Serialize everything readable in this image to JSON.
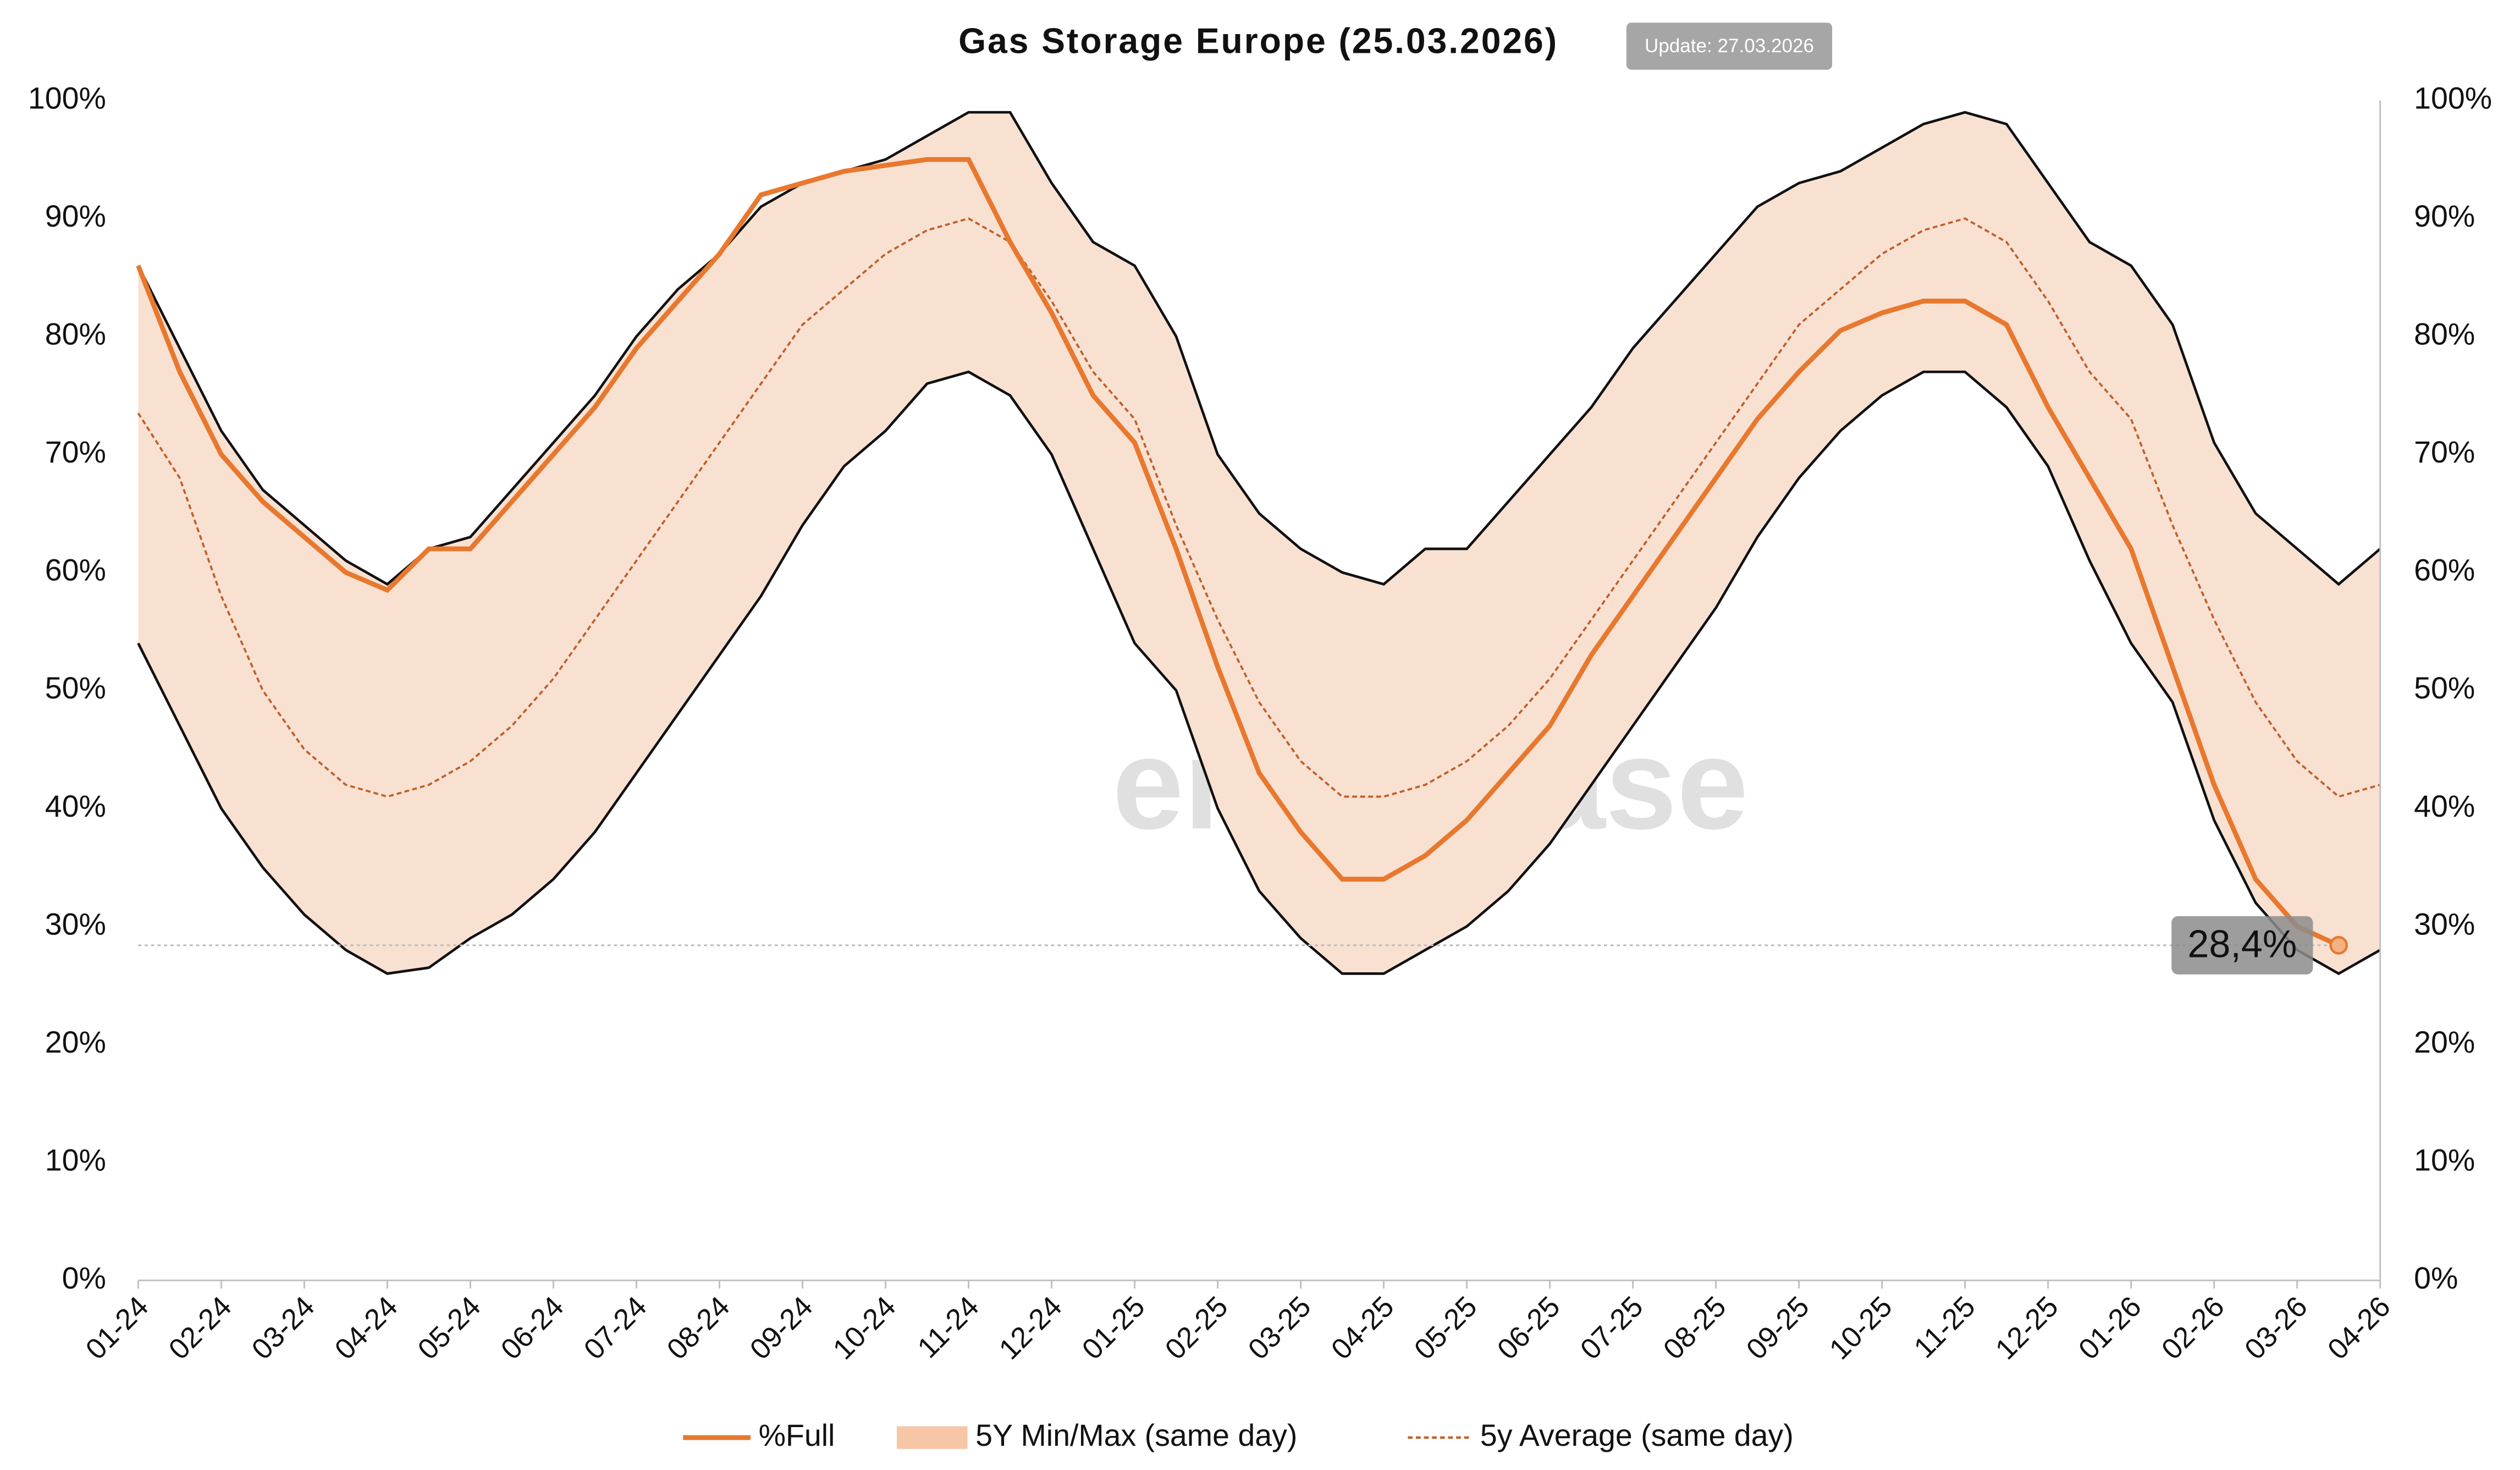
{
  "chart_data": {
    "type": "line",
    "title": "Gas Storage Europe (25.03.2026)",
    "update": "Update: 27.03.2026",
    "watermark": "enerchase",
    "categories": [
      "01-24",
      null,
      "02-24",
      null,
      "03-24",
      null,
      "04-24",
      null,
      "05-24",
      null,
      "06-24",
      null,
      "07-24",
      null,
      "08-24",
      null,
      "09-24",
      null,
      "10-24",
      null,
      "11-24",
      null,
      "12-24",
      null,
      "01-25",
      null,
      "02-25",
      null,
      "03-25",
      null,
      "04-25",
      null,
      "05-25",
      null,
      "06-25",
      null,
      "07-25",
      null,
      "08-25",
      null,
      "09-25",
      null,
      "10-25",
      null,
      "11-25",
      null,
      "12-25",
      null,
      "01-26",
      null,
      "02-26",
      null,
      "03-26",
      null,
      "04-26"
    ],
    "series": [
      {
        "name": "%Full",
        "color": "#e8782e",
        "values": [
          86,
          77,
          70,
          66,
          63,
          60,
          58.5,
          62,
          62,
          66,
          70,
          74,
          79,
          83,
          87,
          92,
          93,
          94,
          94.5,
          95,
          95,
          88,
          82,
          75,
          71,
          62,
          52,
          43,
          38,
          34,
          34,
          36,
          39,
          43,
          47,
          53,
          58,
          63,
          68,
          73,
          77,
          80.5,
          82,
          83,
          83,
          81,
          74,
          68,
          62,
          52,
          42,
          34,
          30,
          28.4,
          null
        ],
        "value_labels": [
          null,
          null,
          null,
          null,
          null,
          null,
          null,
          null,
          null,
          null,
          null,
          null,
          null,
          null,
          null,
          null,
          null,
          null,
          null,
          null,
          null,
          null,
          null,
          null,
          null,
          null,
          null,
          null,
          null,
          null,
          null,
          null,
          null,
          null,
          null,
          null,
          null,
          null,
          null,
          null,
          null,
          null,
          null,
          null,
          null,
          null,
          null,
          null,
          null,
          null,
          null,
          null,
          null,
          "28,4%",
          null
        ]
      },
      {
        "name": "5Y Min/Max (same day)",
        "color": "#f9e1d2",
        "line_color": "#111111",
        "min": [
          54,
          47,
          40,
          35,
          31,
          28,
          26,
          26.5,
          29,
          31,
          34,
          38,
          43,
          48,
          53,
          58,
          64,
          69,
          72,
          76,
          77,
          75,
          70,
          62,
          54,
          50,
          40,
          33,
          29,
          26,
          26,
          28,
          30,
          33,
          37,
          42,
          47,
          52,
          57,
          63,
          68,
          72,
          75,
          77,
          77,
          74,
          69,
          61,
          54,
          49,
          39,
          32,
          28,
          26,
          28
        ],
        "max": [
          86,
          79,
          72,
          67,
          64,
          61,
          59,
          62,
          63,
          67,
          71,
          75,
          80,
          84,
          87,
          91,
          93,
          94,
          95,
          97,
          99,
          99,
          93,
          88,
          86,
          80,
          70,
          65,
          62,
          60,
          59,
          62,
          62,
          66,
          70,
          74,
          79,
          83,
          87,
          91,
          93,
          94,
          96,
          98,
          99,
          98,
          93,
          88,
          86,
          81,
          71,
          65,
          62,
          59,
          62
        ]
      },
      {
        "name": "5y Average (same day)",
        "color": "#c0602a",
        "dashed": true,
        "values": [
          73.5,
          68,
          58,
          50,
          45,
          42,
          41,
          42,
          44,
          47,
          51,
          56,
          61,
          66,
          71,
          76,
          81,
          84,
          87,
          89,
          90,
          88,
          83,
          77,
          73,
          64,
          56,
          49,
          44,
          41,
          41,
          42,
          44,
          47,
          51,
          56,
          61,
          66,
          71,
          76,
          81,
          84,
          87,
          89,
          90,
          88,
          83,
          77,
          73,
          64,
          56,
          49,
          44,
          41,
          42
        ]
      }
    ],
    "ylim": [
      0,
      100
    ],
    "yticks": [
      {
        "value": 0,
        "label": "0%"
      },
      {
        "value": 10,
        "label": "10%"
      },
      {
        "value": 20,
        "label": "20%"
      },
      {
        "value": 30,
        "label": "30%"
      },
      {
        "value": 40,
        "label": "40%"
      },
      {
        "value": 50,
        "label": "50%"
      },
      {
        "value": 60,
        "label": "60%"
      },
      {
        "value": 70,
        "label": "70%"
      },
      {
        "value": 80,
        "label": "80%"
      },
      {
        "value": 90,
        "label": "90%"
      },
      {
        "value": 100,
        "label": "100%"
      }
    ],
    "y2lim": [
      0,
      100
    ],
    "y2ticks": [
      {
        "value": 0,
        "label": "0%"
      },
      {
        "value": 10,
        "label": "10%"
      },
      {
        "value": 20,
        "label": "20%"
      },
      {
        "value": 30,
        "label": "30%"
      },
      {
        "value": 40,
        "label": "40%"
      },
      {
        "value": 50,
        "label": "50%"
      },
      {
        "value": 60,
        "label": "60%"
      },
      {
        "value": 70,
        "label": "70%"
      },
      {
        "value": 80,
        "label": "80%"
      },
      {
        "value": 90,
        "label": "90%"
      },
      {
        "value": 100,
        "label": "100%"
      }
    ],
    "grid": false,
    "legend": "bottom"
  }
}
